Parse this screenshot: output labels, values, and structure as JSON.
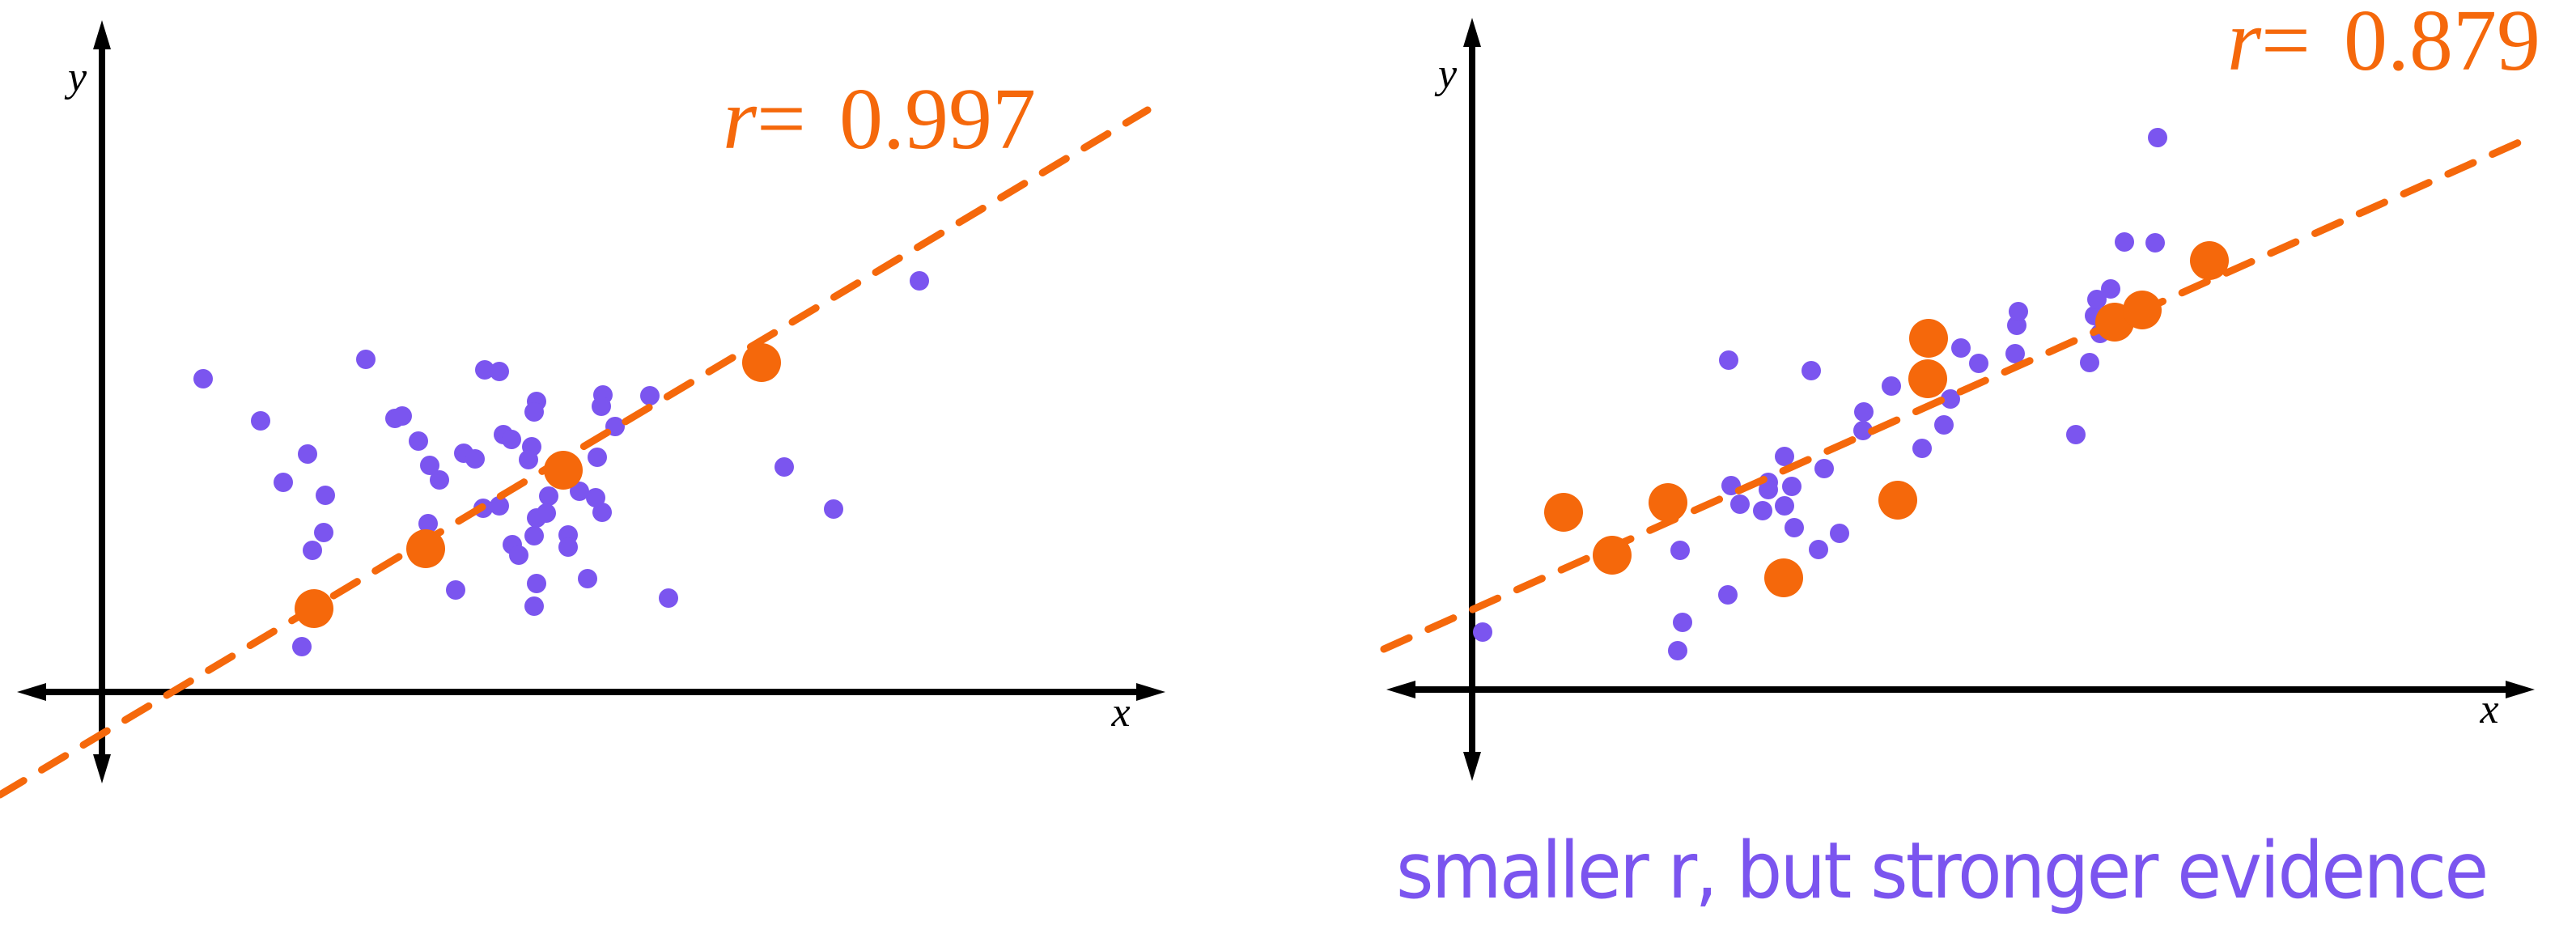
{
  "colors": {
    "background": "#ffffff",
    "axis": "#000000",
    "orange": "#F5680B",
    "purple": "#7B55EF"
  },
  "caption": "smaller r, but stronger evidence",
  "chart_data": [
    {
      "type": "scatter",
      "title": "",
      "annotation": "r = 0.997",
      "r_value": "0.997",
      "xlabel": "x",
      "ylabel": "y",
      "grid": false,
      "legend": null,
      "pixel_frame": {
        "origin": [
          126,
          855
        ],
        "x_axis": [
          21,
          1440
        ],
        "y_axis": [
          968,
          25
        ],
        "x_label_pos": [
          1385,
          897
        ],
        "y_label_pos": [
          84,
          112
        ],
        "r_label_pos": [
          893,
          183
        ]
      },
      "fit_line": {
        "from": [
          0,
          982
        ],
        "to": [
          1418,
          136
        ]
      },
      "series": [
        {
          "name": "highlighted points",
          "color": "#F5680B",
          "radius": 24,
          "points": [
            [
              388,
              752
            ],
            [
              526,
              678
            ],
            [
              696,
              581
            ],
            [
              941,
              448
            ]
          ]
        },
        {
          "name": "background points",
          "color": "#7B55EF",
          "radius": 12,
          "points": [
            [
              251,
              468
            ],
            [
              322,
              520
            ],
            [
              380,
              561
            ],
            [
              350,
              596
            ],
            [
              402,
              612
            ],
            [
              400,
              658
            ],
            [
              386,
              680
            ],
            [
              373,
              799
            ],
            [
              452,
              444
            ],
            [
              488,
              517
            ],
            [
              497,
              514
            ],
            [
              517,
              545
            ],
            [
              531,
              575
            ],
            [
              543,
              593
            ],
            [
              529,
              647
            ],
            [
              563,
              729
            ],
            [
              573,
              560
            ],
            [
              587,
              567
            ],
            [
              599,
              457
            ],
            [
              617,
              459
            ],
            [
              597,
              628
            ],
            [
              617,
              625
            ],
            [
              622,
              537
            ],
            [
              632,
              543
            ],
            [
              633,
              673
            ],
            [
              641,
              686
            ],
            [
              657,
              552
            ],
            [
              663,
              496
            ],
            [
              663,
              640
            ],
            [
              663,
              721
            ],
            [
              678,
              613
            ],
            [
              660,
              509
            ],
            [
              653,
              568
            ],
            [
              675,
              634
            ],
            [
              660,
              662
            ],
            [
              702,
              661
            ],
            [
              702,
              676
            ],
            [
              726,
              715
            ],
            [
              660,
              749
            ],
            [
              716,
              607
            ],
            [
              736,
              615
            ],
            [
              744,
              633
            ],
            [
              738,
              565
            ],
            [
              760,
              527
            ],
            [
              745,
              488
            ],
            [
              743,
              502
            ],
            [
              803,
              489
            ],
            [
              826,
              739
            ],
            [
              969,
              577
            ],
            [
              1030,
              629
            ],
            [
              1136,
              347
            ]
          ]
        }
      ]
    },
    {
      "type": "scatter",
      "title": "",
      "annotation": "r = 0.879",
      "r_value": "0.879",
      "xlabel": "x",
      "ylabel": "y",
      "grid": false,
      "legend": null,
      "pixel_frame": {
        "origin": [
          1819,
          852
        ],
        "x_axis": [
          1713,
          3132
        ],
        "y_axis": [
          965,
          22
        ],
        "x_label_pos": [
          3076,
          893
        ],
        "y_label_pos": [
          1777,
          108
        ],
        "r_label_pos": [
          2752,
          86
        ]
      },
      "fit_line": {
        "from": [
          1710,
          802
        ],
        "to": [
          3119,
          173
        ]
      },
      "series": [
        {
          "name": "highlighted points",
          "color": "#F5680B",
          "radius": 24,
          "points": [
            [
              1932,
              633
            ],
            [
              1992,
              686
            ],
            [
              2061,
              621
            ],
            [
              2204,
              714
            ],
            [
              2345,
              618
            ],
            [
              2383,
              418
            ],
            [
              2382,
              468
            ],
            [
              2613,
              398
            ],
            [
              2647,
              383
            ],
            [
              2730,
              322
            ]
          ]
        },
        {
          "name": "background points",
          "color": "#7B55EF",
          "radius": 12,
          "points": [
            [
              1832,
              781
            ],
            [
              2073,
              804
            ],
            [
              2079,
              769
            ],
            [
              2076,
              680
            ],
            [
              2135,
              735
            ],
            [
              2136,
              445
            ],
            [
              2139,
              600
            ],
            [
              2150,
              623
            ],
            [
              2178,
              631
            ],
            [
              2185,
              596
            ],
            [
              2185,
              605
            ],
            [
              2205,
              564
            ],
            [
              2205,
              625
            ],
            [
              2214,
              601
            ],
            [
              2217,
              652
            ],
            [
              2238,
              458
            ],
            [
              2247,
              679
            ],
            [
              2254,
              579
            ],
            [
              2273,
              659
            ],
            [
              2302,
              532
            ],
            [
              2303,
              509
            ],
            [
              2337,
              477
            ],
            [
              2375,
              554
            ],
            [
              2402,
              525
            ],
            [
              2410,
              493
            ],
            [
              2423,
              430
            ],
            [
              2445,
              449
            ],
            [
              2490,
              437
            ],
            [
              2492,
              402
            ],
            [
              2494,
              385
            ],
            [
              2565,
              537
            ],
            [
              2582,
              448
            ],
            [
              2588,
              390
            ],
            [
              2591,
              370
            ],
            [
              2595,
              412
            ],
            [
              2608,
              357
            ],
            [
              2625,
              299
            ],
            [
              2663,
              300
            ],
            [
              2666,
              170
            ]
          ]
        }
      ]
    }
  ]
}
